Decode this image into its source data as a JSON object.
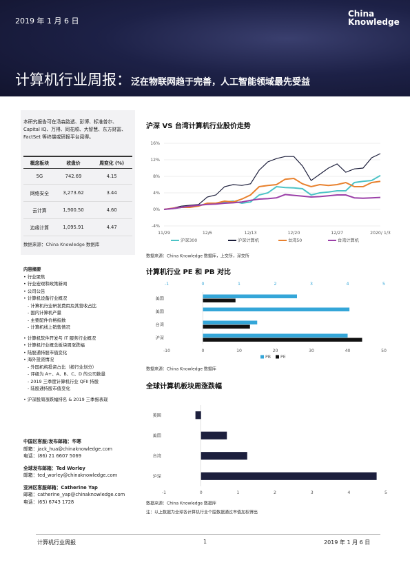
{
  "header": {
    "date": "2019 年 1 月 6 日",
    "logo": "China Knowledge",
    "title": "计算机行业周报：",
    "subtitle": "泛在物联网趋于完善，人工智能领域最先受益"
  },
  "sidebar": {
    "intro": "本研究报告可在汤森路透、彭博、标准普尔、Capital IQ、万得、同花顺、大智慧、东方财富、FactSet 等终端或研报平台阅得。",
    "table": {
      "header": [
        "概念板块",
        "收盘价",
        "周变化 (%)"
      ],
      "rows": [
        [
          "5G",
          "742.69",
          "4.15"
        ],
        [
          "网络安全",
          "3,273.62",
          "3.44"
        ],
        [
          "云计算",
          "1,900.50",
          "4.60"
        ],
        [
          "边缘计算",
          "1,095.91",
          "4.47"
        ]
      ],
      "source": "数据来源：China Knowledge 数据库"
    },
    "summary": {
      "title": "内容摘要",
      "items": [
        {
          "text": "行业聚焦"
        },
        {
          "text": "行业宏观和政策新闻"
        },
        {
          "text": "公司公告"
        },
        {
          "text": "计算机设备行业概况",
          "sub": [
            "计算机行业研发费用及其营收占比",
            "国内计算机产量",
            "主要配件价格指数",
            "计算机线上销售情况"
          ]
        },
        {
          "text": "计算机软件开发与 IT 服务行业概况"
        },
        {
          "text": "计算机行业概念板块周涨跌幅"
        },
        {
          "text": "陆股通持股市值变化"
        },
        {
          "text": "海外投资情况",
          "sub": [
            "外国机构投资占比（按行业划分）",
            "评级为 A+、A、B、C、D 的公司数量",
            "2019 三季度计算机行业 QFII 持股",
            "陆股通持股市值变化"
          ]
        },
        {
          "text": "沪深股周涨跌幅排名 & 2019 三季报表现"
        }
      ]
    },
    "contacts": [
      {
        "title": "中国区客服/发布邮箱：华寒",
        "lines": [
          "邮箱：jack_hua@chinaknowledge.com",
          "电话：(86) 21 6607 5069"
        ]
      },
      {
        "title": "全球发布邮箱：Ted Worley",
        "lines": [
          "邮箱：ted_worley@chinaknowledge.com"
        ]
      },
      {
        "title": "亚洲区客服邮箱：Catherine Yap",
        "lines": [
          "邮箱：catherine_yap@chinaknowledge.com",
          "电话：(65) 6743 1728"
        ]
      }
    ]
  },
  "chart_data": [
    {
      "type": "line",
      "title": "沪深 VS 台湾计算机行业股价走势",
      "categories": [
        "11/29",
        null,
        null,
        null,
        null,
        "12/6",
        null,
        null,
        null,
        null,
        "12/13",
        null,
        null,
        null,
        null,
        "12/20",
        null,
        null,
        null,
        null,
        "12/27",
        null,
        null,
        null,
        null,
        "2020/ 1/3"
      ],
      "ylim": [
        -4,
        16
      ],
      "yticks": [
        {
          "value": -4,
          "label": "-4%"
        },
        {
          "value": 0,
          "label": "0%"
        },
        {
          "value": 4,
          "label": "4%"
        },
        {
          "value": 8,
          "label": "8%"
        },
        {
          "value": 12,
          "label": "12%"
        },
        {
          "value": 16,
          "label": "16%"
        }
      ],
      "grid": true,
      "series": [
        {
          "name": "沪深300",
          "color": "#4cc3c6",
          "values": [
            0,
            0.2,
            0.5,
            0.8,
            1.0,
            1.3,
            1.5,
            1.8,
            2.0,
            1.5,
            1.8,
            3.5,
            4.0,
            5.5,
            5.3,
            5.2,
            5.0,
            3.5,
            4.0,
            4.2,
            4.5,
            4.5,
            6.5,
            6.8,
            7.0,
            8.2
          ]
        },
        {
          "name": "沪深计算机",
          "color": "#1b1d3a",
          "values": [
            0,
            0.3,
            0.8,
            1.0,
            1.2,
            3.0,
            3.5,
            5.5,
            6.0,
            5.8,
            6.2,
            9.5,
            11.5,
            12.3,
            12.8,
            12.8,
            10.5,
            7.0,
            8.5,
            10.0,
            11.0,
            9.0,
            9.8,
            10.0,
            12.5,
            13.5
          ]
        },
        {
          "name": "台湾50",
          "color": "#e8812e",
          "values": [
            0,
            0.3,
            0.5,
            0.5,
            0.8,
            1.5,
            1.5,
            2.0,
            1.8,
            2.5,
            3.5,
            5.5,
            5.8,
            6.0,
            7.3,
            7.5,
            6.2,
            5.5,
            6.0,
            5.8,
            6.0,
            6.5,
            5.5,
            5.5,
            6.5,
            6.8
          ]
        },
        {
          "name": "台湾计算机",
          "color": "#9b3fa8",
          "values": [
            0,
            0.2,
            0.5,
            0.8,
            1.0,
            1.2,
            1.3,
            1.5,
            1.6,
            1.8,
            2.2,
            2.5,
            2.6,
            2.8,
            3.6,
            3.4,
            3.2,
            3.0,
            3.1,
            3.3,
            3.5,
            3.5,
            2.8,
            2.7,
            2.8,
            2.9
          ]
        }
      ],
      "source": "数据来源：China Knowledge 数据库，上交所，深交所"
    },
    {
      "type": "hbar",
      "title": "计算机行业 PE 和 PB 对比",
      "categories": [
        "美国",
        "美国",
        "台湾",
        "沪深"
      ],
      "xlim": [
        -10,
        50
      ],
      "xticks": [
        -10,
        0,
        10,
        20,
        30,
        40,
        50
      ],
      "x2lim": [
        -1,
        5
      ],
      "x2ticks": [
        -1,
        0,
        1,
        2,
        3,
        4,
        5
      ],
      "series": [
        {
          "name": "PB",
          "color": "#34a6d8",
          "axis": "x2",
          "values": [
            2.6,
            4.05,
            1.5,
            4.0
          ]
        },
        {
          "name": "PE",
          "color": "#111111",
          "values": [
            9,
            0,
            13,
            44
          ]
        }
      ],
      "source": "数据来源：China Knowledge 数据库"
    },
    {
      "type": "hbar",
      "title": "全球计算机板块周涨跌幅",
      "categories": [
        "美国",
        "美国",
        "台湾",
        "沪深"
      ],
      "xlim": [
        -1,
        5
      ],
      "xticks": [
        -1,
        0,
        1,
        2,
        3,
        4,
        5
      ],
      "series": [
        {
          "color": "#1c1f3d",
          "values": [
            -0.15,
            0.7,
            1.25,
            4.75
          ]
        }
      ],
      "source": "数据来源：China Knowledge 数据库",
      "note": "注：以上数据为全球各计算机行业个股数据通过市值加权得出"
    }
  ],
  "footer": {
    "left": "计算机行业周报",
    "page": "1",
    "right": "2019 年 1 月 6 日"
  }
}
